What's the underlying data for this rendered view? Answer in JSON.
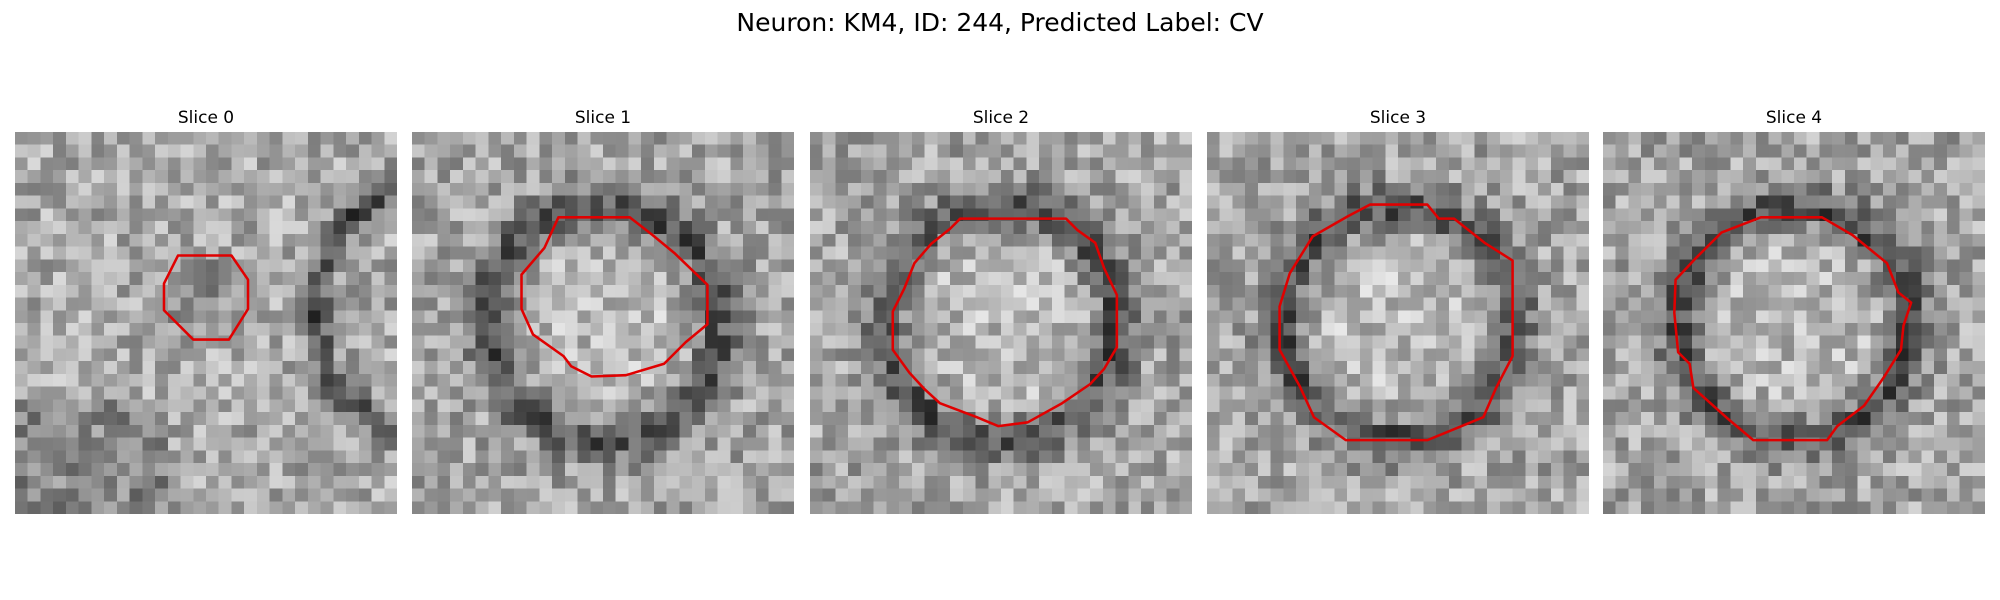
{
  "figure": {
    "title": "Neuron: KM4, ID: 244, Predicted Label: CV",
    "contour_color": "#e00000",
    "colormap": "grayscale"
  },
  "slices": [
    {
      "label": "Slice 0",
      "seed": 11,
      "style": "small"
    },
    {
      "label": "Slice 1",
      "seed": 23,
      "style": "ring"
    },
    {
      "label": "Slice 2",
      "seed": 37,
      "style": "ring"
    },
    {
      "label": "Slice 3",
      "seed": 51,
      "style": "ring"
    },
    {
      "label": "Slice 4",
      "seed": 67,
      "style": "ring"
    }
  ]
}
